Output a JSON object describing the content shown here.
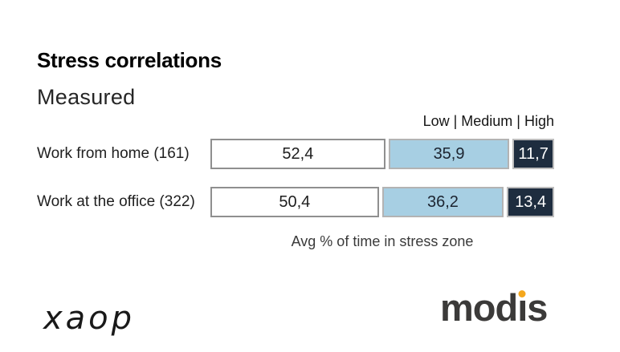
{
  "title": "Stress correlations",
  "subtitle": "Measured",
  "legend": "Low | Medium | High",
  "caption": "Avg % of time in stress zone",
  "colors": {
    "low_fill": "#ffffff",
    "low_border": "#8f8f8f",
    "low_text": "#1d1d1d",
    "medium_fill": "#a7cfe3",
    "medium_border": "#b3b3b3",
    "medium_text": "#1c2430",
    "high_fill": "#1e2d3f",
    "high_border": "#bdbdbd",
    "high_text": "#ffffff",
    "accent_orange": "#f4a71d"
  },
  "chart_data": {
    "type": "bar",
    "orientation": "horizontal",
    "stacked": true,
    "title": "Stress correlations",
    "subtitle": "Measured",
    "categories": [
      "Work from home (161)",
      "Work at the office (322)"
    ],
    "series": [
      {
        "name": "Low",
        "values": [
          52.4,
          50.4
        ]
      },
      {
        "name": "Medium",
        "values": [
          35.9,
          36.2
        ]
      },
      {
        "name": "High",
        "values": [
          11.7,
          13.4
        ]
      }
    ],
    "value_format": "decimal-comma",
    "xlabel": "Avg % of time in stress zone",
    "xlim": [
      0,
      100
    ],
    "legend_position": "top-right",
    "grid": false
  },
  "rows": [
    {
      "label": "Work from home (161)",
      "segments": [
        {
          "series": "Low",
          "value": 52.4,
          "display": "52,4"
        },
        {
          "series": "Medium",
          "value": 35.9,
          "display": "35,9"
        },
        {
          "series": "High",
          "value": 11.7,
          "display": "11,7"
        }
      ]
    },
    {
      "label": "Work at the office (322)",
      "segments": [
        {
          "series": "Low",
          "value": 50.4,
          "display": "50,4"
        },
        {
          "series": "Medium",
          "value": 36.2,
          "display": "36,2"
        },
        {
          "series": "High",
          "value": 13.4,
          "display": "13,4"
        }
      ]
    }
  ],
  "footer": {
    "left_logo_text": "xaop",
    "right_logo_text": "modis",
    "right_logo": {
      "pre": "mod",
      "i": "ı",
      "post": "s"
    }
  }
}
